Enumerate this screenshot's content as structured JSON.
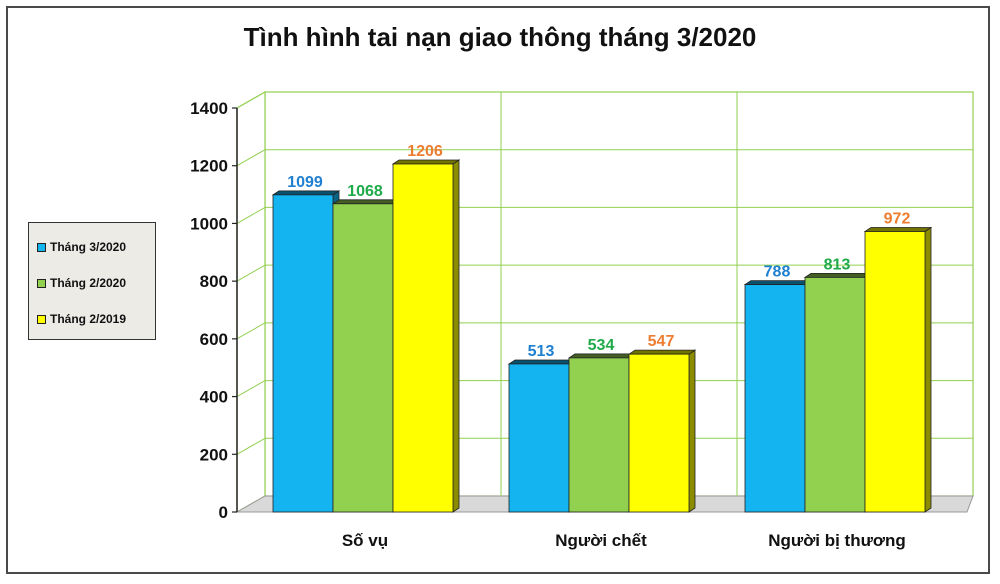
{
  "chart_data": {
    "type": "bar",
    "title": "Tình hình tai nạn giao thông tháng 3/2020",
    "categories": [
      "Số vụ",
      "Người chết",
      "Người bị thương"
    ],
    "series": [
      {
        "name": "Tháng 3/2020",
        "values": [
          1099,
          513,
          788
        ],
        "color": "#14b4f0",
        "label_color": "#1f7fd0"
      },
      {
        "name": "Tháng 2/2020",
        "values": [
          1068,
          534,
          813
        ],
        "color": "#92d050",
        "label_color": "#1faa4a"
      },
      {
        "name": "Tháng 2/2019",
        "values": [
          1206,
          547,
          972
        ],
        "color": "#ffff00",
        "label_color": "#ed7d31"
      }
    ],
    "y_ticks": [
      "0",
      "200",
      "400",
      "600",
      "800",
      "1000",
      "1200",
      "1400"
    ],
    "ylim": [
      0,
      1400
    ],
    "grid": true,
    "legend_position": "left"
  }
}
